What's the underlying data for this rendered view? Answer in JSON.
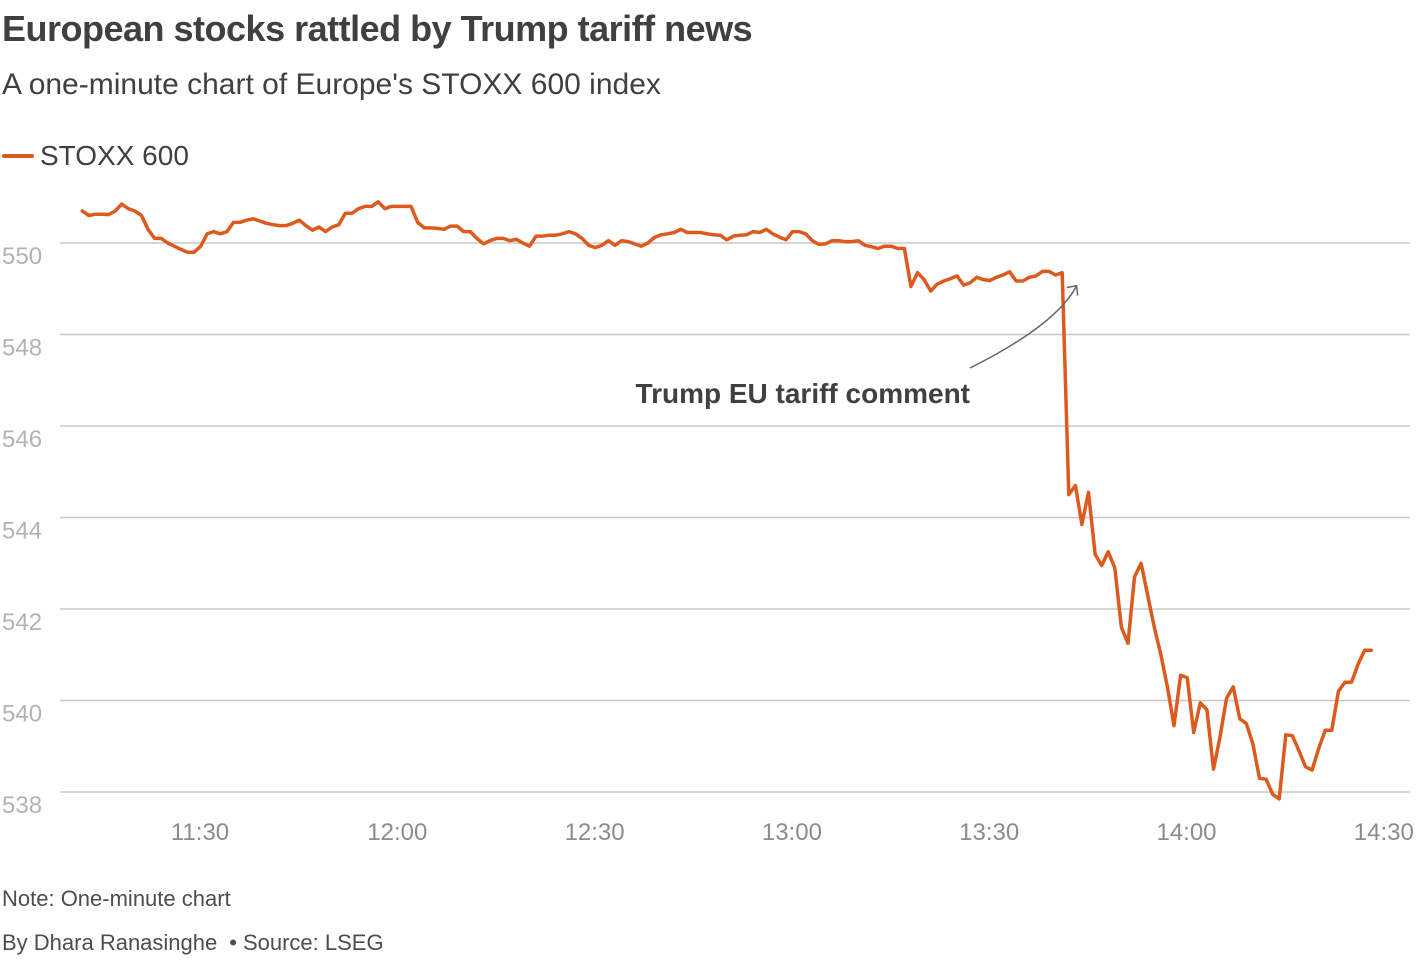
{
  "header": {
    "title": "European stocks rattled by Trump tariff news",
    "subtitle": "A one-minute chart of Europe's STOXX 600 index"
  },
  "legend": {
    "label": "STOXX 600",
    "color": "#dc5a1e"
  },
  "footer": {
    "note": "Note: One-minute chart",
    "byline": "By Dhara Ranasinghe",
    "bullet": "•",
    "source": "Source: LSEG"
  },
  "chart_data": {
    "type": "line",
    "title": "European stocks rattled by Trump tariff news",
    "subtitle": "A one-minute chart of Europe's STOXX 600 index",
    "xlabel": "",
    "ylabel": "",
    "xlim": [
      670,
      871
    ],
    "ylim": [
      537.8,
      552
    ],
    "x_unit": "minutes since midnight",
    "x_ticks": [
      {
        "value": 690,
        "label": "11:30"
      },
      {
        "value": 720,
        "label": "12:00"
      },
      {
        "value": 750,
        "label": "12:30"
      },
      {
        "value": 780,
        "label": "13:00"
      },
      {
        "value": 810,
        "label": "13:30"
      },
      {
        "value": 840,
        "label": "14:00"
      },
      {
        "value": 870,
        "label": "14:30"
      }
    ],
    "y_ticks": [
      {
        "value": 550,
        "label": "550"
      },
      {
        "value": 548,
        "label": "548"
      },
      {
        "value": 546,
        "label": "546"
      },
      {
        "value": 544,
        "label": "544"
      },
      {
        "value": 542,
        "label": "542"
      },
      {
        "value": 540,
        "label": "540"
      },
      {
        "value": 538,
        "label": "538"
      }
    ],
    "grid": true,
    "legend_position": "top-left",
    "annotations": [
      {
        "text": "Trump EU tariff comment",
        "x": 823.3,
        "y": 549.2
      }
    ],
    "series": [
      {
        "name": "STOXX 600",
        "color": "#dc5a1e",
        "points": [
          [
            672.1,
            550.7
          ],
          [
            673.1,
            550.6
          ],
          [
            674.1,
            550.63
          ],
          [
            675.1,
            550.63
          ],
          [
            676.1,
            550.62
          ],
          [
            677.1,
            550.7
          ],
          [
            678.1,
            550.85
          ],
          [
            679.1,
            550.75
          ],
          [
            680.1,
            550.7
          ],
          [
            681.1,
            550.6
          ],
          [
            682.1,
            550.3
          ],
          [
            683.1,
            550.1
          ],
          [
            684.1,
            550.1
          ],
          [
            685.1,
            550.0
          ],
          [
            686.1,
            549.93
          ],
          [
            687.1,
            549.86
          ],
          [
            688.1,
            549.8
          ],
          [
            689.1,
            549.8
          ],
          [
            690.1,
            549.93
          ],
          [
            691.1,
            550.2
          ],
          [
            692.1,
            550.25
          ],
          [
            693.1,
            550.2
          ],
          [
            694.1,
            550.25
          ],
          [
            695.1,
            550.45
          ],
          [
            696.1,
            550.45
          ],
          [
            697.1,
            550.5
          ],
          [
            698.1,
            550.53
          ],
          [
            699.1,
            550.48
          ],
          [
            700.1,
            550.43
          ],
          [
            701.1,
            550.4
          ],
          [
            702.1,
            550.38
          ],
          [
            703.1,
            550.38
          ],
          [
            704.1,
            550.43
          ],
          [
            705.1,
            550.5
          ],
          [
            706.1,
            550.38
          ],
          [
            707.1,
            550.28
          ],
          [
            708.1,
            550.35
          ],
          [
            709.1,
            550.25
          ],
          [
            710.1,
            550.35
          ],
          [
            711.1,
            550.4
          ],
          [
            712.1,
            550.65
          ],
          [
            713.1,
            550.65
          ],
          [
            714.1,
            550.75
          ],
          [
            715.1,
            550.8
          ],
          [
            716.1,
            550.8
          ],
          [
            717.1,
            550.9
          ],
          [
            718.1,
            550.75
          ],
          [
            719.1,
            550.8
          ],
          [
            720.1,
            550.8
          ],
          [
            721.1,
            550.8
          ],
          [
            722.1,
            550.8
          ],
          [
            723.1,
            550.45
          ],
          [
            724.1,
            550.33
          ],
          [
            725.1,
            550.33
          ],
          [
            726.1,
            550.32
          ],
          [
            727.1,
            550.3
          ],
          [
            728.1,
            550.37
          ],
          [
            729.1,
            550.37
          ],
          [
            730.1,
            550.25
          ],
          [
            731.1,
            550.25
          ],
          [
            732.1,
            550.1
          ],
          [
            733.1,
            549.98
          ],
          [
            734.1,
            550.05
          ],
          [
            735.1,
            550.1
          ],
          [
            736.1,
            550.1
          ],
          [
            737.1,
            550.05
          ],
          [
            738.1,
            550.08
          ],
          [
            739.1,
            550.0
          ],
          [
            740.1,
            549.93
          ],
          [
            741.1,
            550.15
          ],
          [
            742.1,
            550.15
          ],
          [
            743.1,
            550.17
          ],
          [
            744.1,
            550.17
          ],
          [
            745.1,
            550.2
          ],
          [
            746.1,
            550.25
          ],
          [
            747.1,
            550.2
          ],
          [
            748.1,
            550.1
          ],
          [
            749.1,
            549.95
          ],
          [
            750.1,
            549.9
          ],
          [
            751.1,
            549.95
          ],
          [
            752.1,
            550.05
          ],
          [
            753.1,
            549.95
          ],
          [
            754.1,
            550.05
          ],
          [
            755.1,
            550.03
          ],
          [
            756.1,
            549.98
          ],
          [
            757.1,
            549.93
          ],
          [
            758.1,
            550.0
          ],
          [
            759.1,
            550.12
          ],
          [
            760.1,
            550.18
          ],
          [
            761.1,
            550.2
          ],
          [
            762.1,
            550.23
          ],
          [
            763.1,
            550.3
          ],
          [
            764.1,
            550.23
          ],
          [
            765.1,
            550.23
          ],
          [
            766.1,
            550.23
          ],
          [
            767.1,
            550.2
          ],
          [
            768.1,
            550.18
          ],
          [
            769.1,
            550.17
          ],
          [
            770.1,
            550.07
          ],
          [
            771.1,
            550.15
          ],
          [
            772.1,
            550.17
          ],
          [
            773.1,
            550.18
          ],
          [
            774.1,
            550.25
          ],
          [
            775.1,
            550.23
          ],
          [
            776.1,
            550.3
          ],
          [
            777.1,
            550.2
          ],
          [
            778.1,
            550.13
          ],
          [
            779.1,
            550.07
          ],
          [
            780.1,
            550.25
          ],
          [
            781.1,
            550.25
          ],
          [
            782.1,
            550.2
          ],
          [
            783.1,
            550.05
          ],
          [
            784.1,
            549.97
          ],
          [
            785.1,
            549.98
          ],
          [
            786.1,
            550.05
          ],
          [
            787.1,
            550.05
          ],
          [
            788.1,
            550.03
          ],
          [
            789.1,
            550.03
          ],
          [
            790.1,
            550.05
          ],
          [
            791.1,
            549.95
          ],
          [
            792.1,
            549.92
          ],
          [
            793.1,
            549.88
          ],
          [
            794.1,
            549.93
          ],
          [
            795.1,
            549.93
          ],
          [
            796.1,
            549.88
          ],
          [
            797.1,
            549.88
          ],
          [
            798.1,
            549.05
          ],
          [
            799.1,
            549.35
          ],
          [
            800.1,
            549.2
          ],
          [
            801.1,
            548.95
          ],
          [
            802.1,
            549.1
          ],
          [
            803.1,
            549.17
          ],
          [
            804.1,
            549.22
          ],
          [
            805.1,
            549.28
          ],
          [
            806.1,
            549.08
          ],
          [
            807.1,
            549.13
          ],
          [
            808.1,
            549.25
          ],
          [
            809.1,
            549.2
          ],
          [
            810.1,
            549.18
          ],
          [
            811.1,
            549.25
          ],
          [
            812.1,
            549.3
          ],
          [
            813.1,
            549.37
          ],
          [
            814.1,
            549.17
          ],
          [
            815.1,
            549.17
          ],
          [
            816.1,
            549.25
          ],
          [
            817.1,
            549.28
          ],
          [
            818.1,
            549.38
          ],
          [
            819.1,
            549.38
          ],
          [
            820.1,
            549.3
          ],
          [
            821.1,
            549.35
          ],
          [
            822.1,
            544.5
          ],
          [
            823.1,
            544.7
          ],
          [
            824.1,
            543.85
          ],
          [
            825.1,
            544.55
          ],
          [
            826.1,
            543.2
          ],
          [
            827.1,
            542.95
          ],
          [
            828.1,
            543.25
          ],
          [
            829.1,
            542.9
          ],
          [
            830.1,
            541.6
          ],
          [
            831.1,
            541.25
          ],
          [
            832.1,
            542.7
          ],
          [
            833.1,
            543.0
          ],
          [
            834.1,
            542.3
          ],
          [
            835.1,
            541.6
          ],
          [
            836.1,
            541.0
          ],
          [
            837.1,
            540.3
          ],
          [
            838.1,
            539.45
          ],
          [
            839.1,
            540.55
          ],
          [
            840.1,
            540.5
          ],
          [
            841.1,
            539.3
          ],
          [
            842.1,
            539.95
          ],
          [
            843.1,
            539.8
          ],
          [
            844.1,
            538.5
          ],
          [
            845.1,
            539.2
          ],
          [
            846.1,
            540.05
          ],
          [
            847.1,
            540.3
          ],
          [
            848.1,
            539.6
          ],
          [
            849.1,
            539.5
          ],
          [
            850.1,
            539.05
          ],
          [
            851.1,
            538.3
          ],
          [
            852.1,
            538.28
          ],
          [
            853.1,
            537.95
          ],
          [
            854.1,
            537.85
          ],
          [
            855.1,
            539.25
          ],
          [
            856.1,
            539.23
          ],
          [
            857.1,
            538.9
          ],
          [
            858.1,
            538.55
          ],
          [
            859.1,
            538.48
          ],
          [
            860.1,
            538.95
          ],
          [
            861.1,
            539.35
          ],
          [
            862.1,
            539.35
          ],
          [
            863.1,
            540.2
          ],
          [
            864.1,
            540.4
          ],
          [
            865.1,
            540.4
          ],
          [
            866.1,
            540.8
          ],
          [
            867.1,
            541.1
          ],
          [
            868.1,
            541.1
          ]
        ]
      }
    ]
  }
}
